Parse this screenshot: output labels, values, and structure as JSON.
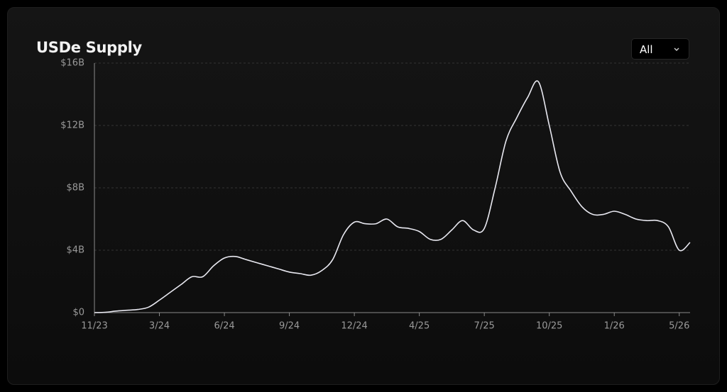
{
  "chart_data": {
    "type": "line",
    "title": "USDe Supply",
    "range_selector": "All",
    "categories": [
      "11/23",
      null,
      null,
      null,
      null,
      null,
      "3/24",
      null,
      null,
      null,
      null,
      null,
      "6/24",
      null,
      null,
      null,
      null,
      null,
      "9/24",
      null,
      null,
      null,
      null,
      null,
      "12/24",
      null,
      null,
      null,
      null,
      null,
      "4/25",
      null,
      null,
      null,
      null,
      null,
      "7/25",
      null,
      null,
      null,
      null,
      null,
      "10/25",
      null,
      null,
      null,
      null,
      null,
      "1/26",
      null,
      null,
      null,
      null,
      null,
      "5/26",
      null
    ],
    "series": [
      {
        "name": "USDe Supply",
        "color": "#e8e8f0",
        "values": [
          0,
          0.02,
          0.1,
          0.15,
          0.2,
          0.35,
          0.8,
          1.3,
          1.8,
          2.3,
          2.3,
          3.0,
          3.5,
          3.6,
          3.4,
          3.2,
          3.0,
          2.8,
          2.6,
          2.5,
          2.4,
          2.7,
          3.4,
          5.0,
          5.8,
          5.7,
          5.7,
          6.0,
          5.5,
          5.4,
          5.2,
          4.7,
          4.7,
          5.3,
          5.9,
          5.3,
          5.4,
          8.0,
          11.0,
          12.5,
          13.8,
          14.8,
          12.0,
          9.0,
          7.8,
          6.8,
          6.3,
          6.3,
          6.5,
          6.3,
          6.0,
          5.9,
          5.9,
          5.5,
          4.0,
          4.5
        ]
      }
    ],
    "ylim": [
      0,
      16
    ],
    "yticks": [
      {
        "value": 0,
        "label": "$0"
      },
      {
        "value": 4,
        "label": "$4B"
      },
      {
        "value": 8,
        "label": "$8B"
      },
      {
        "value": 12,
        "label": "$12B"
      },
      {
        "value": 16,
        "label": "$16B"
      }
    ],
    "grid": true
  }
}
